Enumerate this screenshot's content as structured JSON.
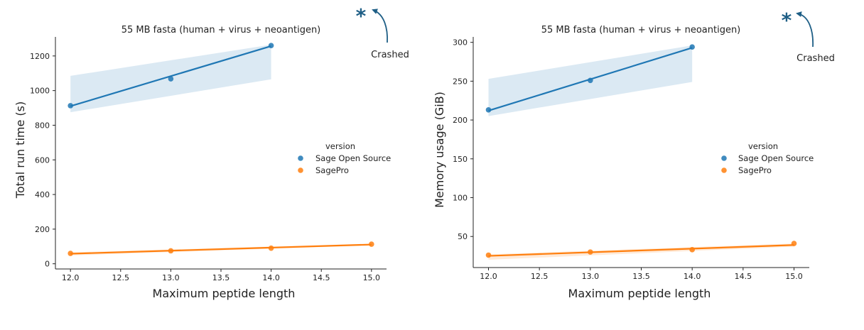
{
  "colors": {
    "sage_open_source": "#1f77b4",
    "sagepro": "#ff7f0e",
    "annotation": "#1f5f86",
    "axis": "#222222"
  },
  "chart_data": [
    {
      "type": "scatter",
      "title": "55 MB fasta (human + virus + neoantigen)",
      "xlabel": "Maximum peptide length",
      "ylabel": "Total run time (s)",
      "xlim": [
        11.85,
        15.15
      ],
      "ylim": [
        -30,
        1310
      ],
      "xticks": [
        12.0,
        12.5,
        13.0,
        13.5,
        14.0,
        14.5,
        15.0
      ],
      "xtick_labels": [
        "12.0",
        "12.5",
        "13.0",
        "13.5",
        "14.0",
        "14.5",
        "15.0"
      ],
      "yticks": [
        0,
        200,
        400,
        600,
        800,
        1000,
        1200
      ],
      "ytick_labels": [
        "0",
        "200",
        "400",
        "600",
        "800",
        "1000",
        "1200"
      ],
      "legend": {
        "title": "version",
        "placement": "center-right"
      },
      "series": [
        {
          "name": "Sage Open Source",
          "color_key": "sage_open_source",
          "x": [
            12,
            13,
            14
          ],
          "y": [
            913,
            1068,
            1260
          ],
          "fit": [
            [
              12,
              910
            ],
            [
              14,
              1257
            ]
          ],
          "ci_upper": [
            [
              12,
              1085
            ],
            [
              14,
              1265
            ]
          ],
          "ci_lower": [
            [
              12,
              875
            ],
            [
              14,
              1065
            ]
          ]
        },
        {
          "name": "SagePro",
          "color_key": "sagepro",
          "x": [
            12,
            13,
            14,
            15
          ],
          "y": [
            60,
            75,
            90,
            113
          ],
          "fit": [
            [
              12,
              58
            ],
            [
              15,
              111
            ]
          ],
          "ci_upper": [
            [
              12,
              66
            ],
            [
              15,
              116
            ]
          ],
          "ci_lower": [
            [
              12,
              48
            ],
            [
              15,
              106
            ]
          ]
        }
      ],
      "annotation": {
        "symbol": "*",
        "text": "Crashed"
      }
    },
    {
      "type": "scatter",
      "title": "55 MB fasta (human + virus + neoantigen)",
      "xlabel": "Maximum peptide length",
      "ylabel": "Memory usage (GiB)",
      "xlim": [
        11.85,
        15.15
      ],
      "ylim": [
        10,
        307
      ],
      "xticks": [
        12.0,
        12.5,
        13.0,
        13.5,
        14.0,
        14.5,
        15.0
      ],
      "xtick_labels": [
        "12.0",
        "12.5",
        "13.0",
        "13.5",
        "14.0",
        "14.5",
        "15.0"
      ],
      "yticks": [
        50,
        100,
        150,
        200,
        250,
        300
      ],
      "ytick_labels": [
        "50",
        "100",
        "150",
        "200",
        "250",
        "300"
      ],
      "legend": {
        "title": "version",
        "placement": "center-right"
      },
      "series": [
        {
          "name": "Sage Open Source",
          "color_key": "sage_open_source",
          "x": [
            12,
            13,
            14
          ],
          "y": [
            213,
            251,
            294
          ],
          "fit": [
            [
              12,
              212
            ],
            [
              14,
              293
            ]
          ],
          "ci_upper": [
            [
              12,
              253
            ],
            [
              14,
              296
            ]
          ],
          "ci_lower": [
            [
              12,
              205
            ],
            [
              14,
              249
            ]
          ]
        },
        {
          "name": "SagePro",
          "color_key": "sagepro",
          "x": [
            12,
            13,
            14,
            15
          ],
          "y": [
            26,
            30,
            33,
            41
          ],
          "fit": [
            [
              12,
              25
            ],
            [
              15,
              39
            ]
          ],
          "ci_upper": [
            [
              12,
              27
            ],
            [
              15,
              41
            ]
          ],
          "ci_lower": [
            [
              12,
              20
            ],
            [
              15,
              37
            ]
          ]
        }
      ],
      "annotation": {
        "symbol": "*",
        "text": "Crashed"
      }
    }
  ]
}
